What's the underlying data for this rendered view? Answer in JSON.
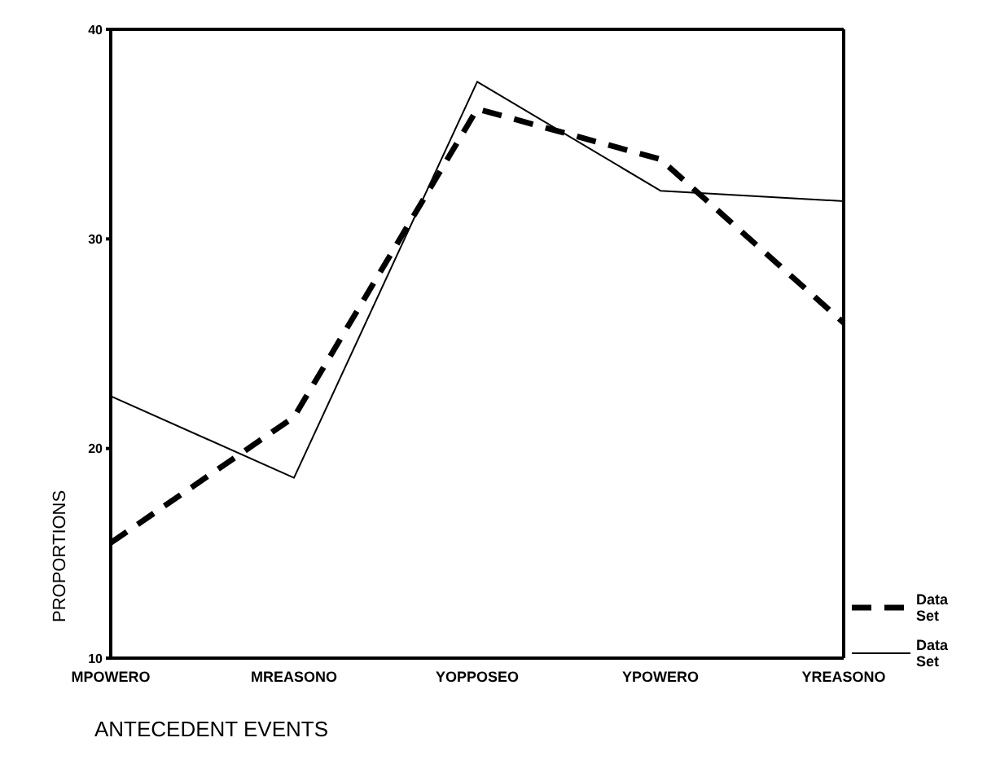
{
  "chart_data": {
    "type": "line",
    "xlabel": "ANTECEDENT EVENTS",
    "ylabel": "PROPORTIONS",
    "categories": [
      "MPOWERO",
      "MREASONO",
      "YOPPOSEO",
      "YPOWERO",
      "YREASONO"
    ],
    "series": [
      {
        "name": "Data Set",
        "color": "#000000",
        "line_style": "dashed",
        "values": [
          15.5,
          21.5,
          36.2,
          33.8,
          26.0
        ]
      },
      {
        "name": "Data Set",
        "color": "#000000",
        "line_style": "solid",
        "values": [
          22.5,
          18.6,
          37.5,
          32.3,
          31.8
        ]
      }
    ],
    "ylim": [
      10,
      40
    ],
    "yticks": [
      10,
      20,
      30,
      40
    ],
    "legend": "bottom right",
    "marker": "none"
  }
}
